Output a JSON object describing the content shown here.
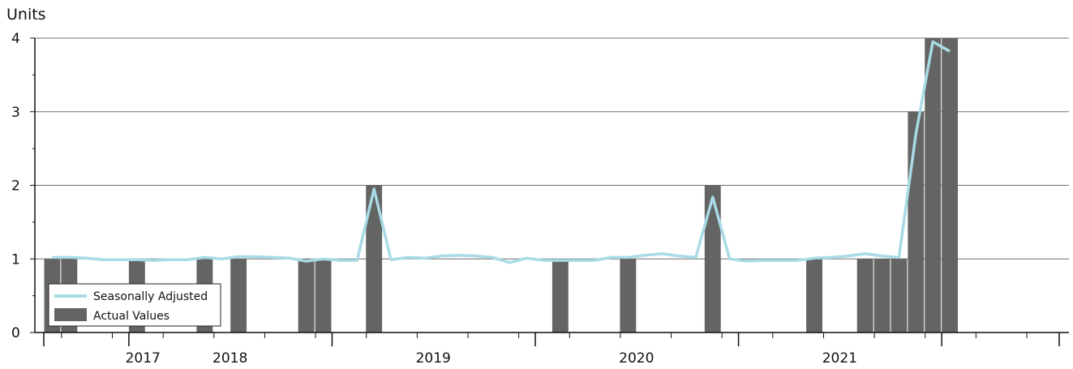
{
  "chart_data": {
    "type": "bar",
    "ylabel": "Units",
    "ylim": [
      0,
      4
    ],
    "yticks": [
      "0",
      "1",
      "2",
      "3",
      "4"
    ],
    "x_axis_years": [
      "2017",
      "2018",
      "2019",
      "2020",
      "2021"
    ],
    "grid": "horizontal",
    "legend_position": "bottom-left",
    "x_start_month": "2016-08",
    "series": [
      {
        "name": "Seasonally Adjusted",
        "type": "line",
        "color": "#a8dbe5",
        "values": [
          1.02,
          1.02,
          1.01,
          0.99,
          0.99,
          0.99,
          0.98,
          0.99,
          0.99,
          1.02,
          1.0,
          1.03,
          1.03,
          1.02,
          1.01,
          0.97,
          1.0,
          0.98,
          0.98,
          1.95,
          0.99,
          1.02,
          1.01,
          1.04,
          1.05,
          1.04,
          1.02,
          0.95,
          1.01,
          0.98,
          0.98,
          0.98,
          0.98,
          1.02,
          1.02,
          1.05,
          1.07,
          1.04,
          1.02,
          1.84,
          1.0,
          0.97,
          0.98,
          0.98,
          0.98,
          1.01,
          1.02,
          1.04,
          1.07,
          1.04,
          1.02,
          2.7,
          3.95,
          3.82
        ]
      },
      {
        "name": "Actual Values",
        "type": "bar",
        "color": "#646464",
        "values": [
          1,
          1,
          0,
          0,
          0,
          1,
          0,
          0,
          0,
          1,
          0,
          1,
          0,
          0,
          0,
          1,
          1,
          0,
          0,
          2,
          0,
          0,
          0,
          0,
          0,
          0,
          0,
          0,
          0,
          0,
          1,
          0,
          0,
          0,
          1,
          0,
          0,
          0,
          0,
          2,
          0,
          0,
          0,
          0,
          0,
          1,
          0,
          0,
          1,
          1,
          1,
          3,
          4,
          4
        ]
      }
    ]
  }
}
